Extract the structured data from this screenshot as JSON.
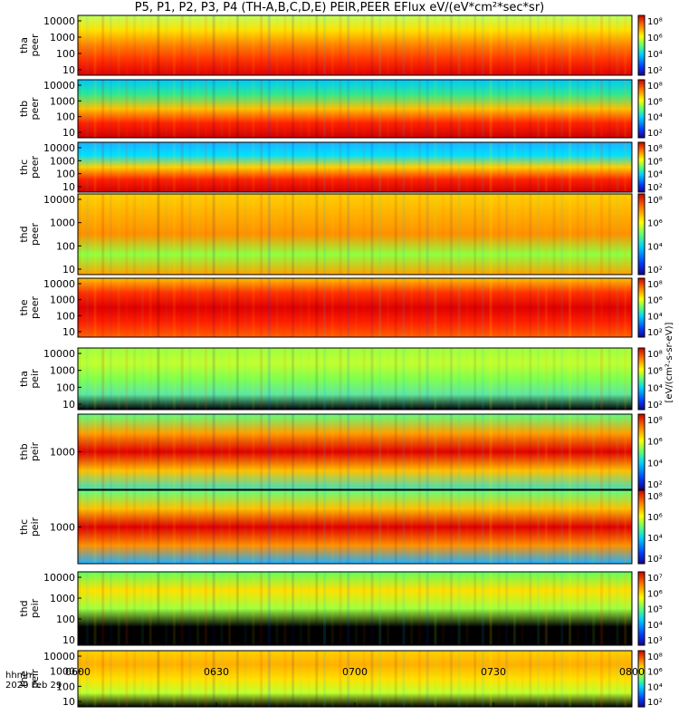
{
  "title": "P5, P1, P2, P3, P4 (TH-A,B,C,D,E) PEIR,PEER EFlux eV/(eV*cm²*sec*sr)",
  "footer": {
    "time_label": "hhmm",
    "date_label": "2020 Feb 29"
  },
  "colors": {
    "colormap": [
      "#000000",
      "#1a0090",
      "#0040ff",
      "#00c0ff",
      "#30e8a0",
      "#90ff30",
      "#ffff00",
      "#ffb000",
      "#ff4000",
      "#d00000"
    ],
    "border": "#000000"
  },
  "chart_data": {
    "type": "heatmap",
    "x_axis": {
      "ticks": [
        "0600",
        "0630",
        "0700",
        "0730",
        "0800"
      ],
      "range": [
        "0600",
        "0800"
      ]
    },
    "colorbar_label": "[eV/(cm²-s-sr-eV)]",
    "panels": [
      {
        "name": "tha peer",
        "ylabel": [
          "tha",
          "peer"
        ],
        "yticks": [
          "10000",
          "1000",
          "100",
          "10"
        ],
        "cbar_ticks": [
          "10⁸",
          "10⁶",
          "10⁴",
          "10²"
        ]
      },
      {
        "name": "thb peer",
        "ylabel": [
          "thb",
          "peer"
        ],
        "yticks": [
          "10000",
          "1000",
          "100",
          "10"
        ],
        "cbar_ticks": [
          "10⁸",
          "10⁶",
          "10⁴",
          "10²"
        ]
      },
      {
        "name": "thc peer",
        "ylabel": [
          "thc",
          "peer"
        ],
        "yticks": [
          "10000",
          "1000",
          "100",
          "10"
        ],
        "cbar_ticks": [
          "10⁸",
          "10⁶",
          "10⁴",
          "10²"
        ]
      },
      {
        "name": "thd peer",
        "ylabel": [
          "thd",
          "peer"
        ],
        "yticks": [
          "10000",
          "1000",
          "100",
          "10"
        ],
        "cbar_ticks": [
          "10⁸",
          "10⁶",
          "10⁴",
          "10²"
        ]
      },
      {
        "name": "the peer",
        "ylabel": [
          "the",
          "peer"
        ],
        "yticks": [
          "10000",
          "1000",
          "100",
          "10"
        ],
        "cbar_ticks": [
          "10⁸",
          "10⁶",
          "10⁴",
          "10²"
        ]
      },
      {
        "name": "tha peir",
        "ylabel": [
          "tha",
          "peir"
        ],
        "yticks": [
          "10000",
          "1000",
          "100",
          "10"
        ],
        "cbar_ticks": [
          "10⁸",
          "10⁶",
          "10⁴",
          "10²"
        ]
      },
      {
        "name": "thb peir",
        "ylabel": [
          "thb",
          "peir"
        ],
        "yticks": [
          "1000"
        ],
        "cbar_ticks": [
          "10⁸",
          "10⁶",
          "10⁴",
          "10²"
        ]
      },
      {
        "name": "thc peir",
        "ylabel": [
          "thc",
          "peir"
        ],
        "yticks": [
          "1000"
        ],
        "cbar_ticks": [
          "10⁸",
          "10⁶",
          "10⁴",
          "10²"
        ]
      },
      {
        "name": "thd peir",
        "ylabel": [
          "thd",
          "peir"
        ],
        "yticks": [
          "10000",
          "1000",
          "100",
          "10"
        ],
        "cbar_ticks": [
          "10⁷",
          "10⁶",
          "10⁵",
          "10⁴",
          "10³"
        ]
      },
      {
        "name": "the peir",
        "ylabel": [
          "the",
          "peir"
        ],
        "yticks": [
          "10000",
          "1000",
          "100",
          "10"
        ],
        "cbar_ticks": [
          "10⁸",
          "10⁶",
          "10⁴",
          "10²"
        ]
      }
    ]
  }
}
